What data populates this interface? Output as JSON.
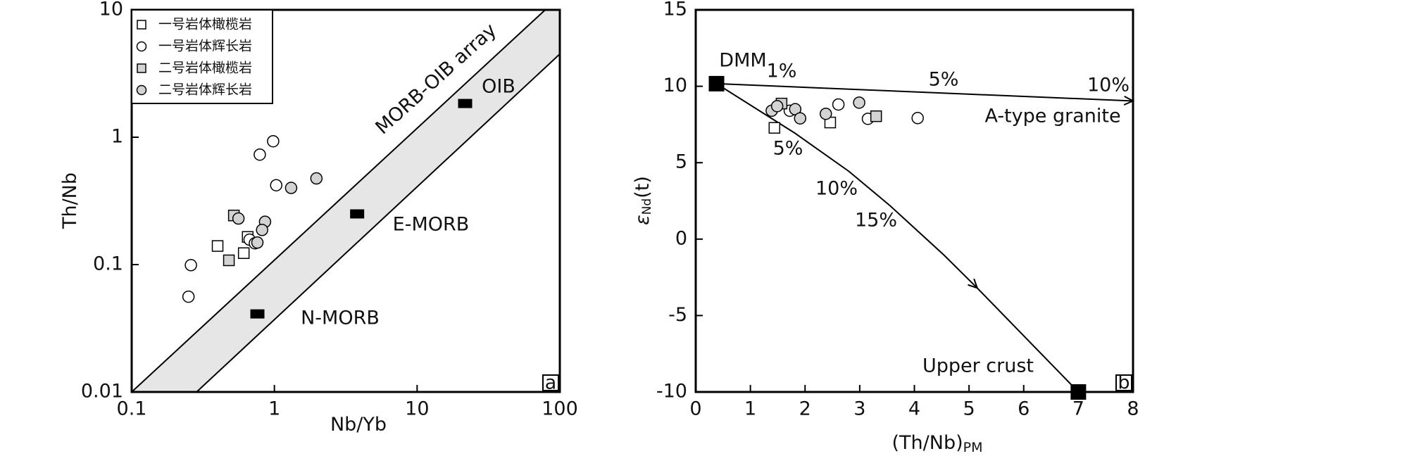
{
  "chart_data": [
    {
      "type": "scatter",
      "log": true,
      "x_label": "Nb/Yb",
      "y_label": "Th/Nb",
      "panel": "a",
      "xlim": [
        0.1,
        100
      ],
      "ylim": [
        0.01,
        10
      ],
      "xticks": [
        0.1,
        1,
        10,
        100
      ],
      "yticks": [
        0.01,
        0.1,
        1,
        10
      ],
      "legend": "upper left",
      "series": [
        {
          "name": "一号岩体橄榄岩",
          "marker": "square",
          "color": "#ffffff",
          "x": [
            0.4,
            0.65,
            0.61
          ],
          "y": [
            0.14,
            0.165,
            0.123
          ]
        },
        {
          "name": "一号岩体辉长岩",
          "marker": "circle",
          "color": "#ffffff",
          "x": [
            0.98,
            0.79,
            1.03,
            0.25,
            0.26,
            0.67,
            0.73
          ],
          "y": [
            0.93,
            0.73,
            0.42,
            0.056,
            0.099,
            0.157,
            0.147
          ]
        },
        {
          "name": "二号岩体橄榄岩",
          "marker": "square",
          "color": "#d3d3d3",
          "x": [
            0.52,
            0.48
          ],
          "y": [
            0.243,
            0.108
          ]
        },
        {
          "name": "二号岩体辉长岩",
          "marker": "circle",
          "color": "#d3d3d3",
          "x": [
            0.56,
            0.86,
            0.82,
            1.31,
            1.97,
            0.76
          ],
          "y": [
            0.23,
            0.217,
            0.187,
            0.4,
            0.475,
            0.149
          ]
        }
      ],
      "end_members": [
        {
          "label": "OIB",
          "x": 21.7,
          "y": 1.84
        },
        {
          "label": "E-MORB",
          "x": 3.8,
          "y": 0.25
        },
        {
          "label": "N-MORB",
          "x": 0.76,
          "y": 0.041
        }
      ],
      "array_lines": [
        {
          "x": [
            0.1,
            79
          ],
          "y": [
            0.01,
            10
          ]
        },
        {
          "x": [
            0.285,
            100
          ],
          "y": [
            0.01,
            4.5
          ]
        }
      ],
      "annotations": [
        "MORB-OIB array"
      ]
    },
    {
      "type": "scatter",
      "log": false,
      "x_label": "(Th/Nb)",
      "x_label_sub": "PM",
      "y_label": "ε",
      "y_label_sub": "Nd",
      "y_label_tail": "(t)",
      "panel": "b",
      "xlim": [
        0,
        8
      ],
      "ylim": [
        -10,
        15
      ],
      "xticks": [
        0,
        1,
        2,
        3,
        4,
        5,
        6,
        7,
        8
      ],
      "yticks": [
        -10,
        -5,
        0,
        5,
        10,
        15
      ],
      "series": [
        {
          "marker": "square",
          "color": "#ffffff",
          "x": [
            1.44,
            2.46
          ],
          "y": [
            7.28,
            7.63
          ]
        },
        {
          "marker": "circle",
          "color": "#ffffff",
          "x": [
            2.61,
            3.15,
            4.06,
            1.72
          ],
          "y": [
            8.81,
            7.87,
            7.92,
            8.4
          ]
        },
        {
          "marker": "square",
          "color": "#d3d3d3",
          "x": [
            1.57,
            3.3
          ],
          "y": [
            8.87,
            8.04
          ]
        },
        {
          "marker": "circle",
          "color": "#d3d3d3",
          "x": [
            1.39,
            1.49,
            1.82,
            1.91,
            2.38,
            2.99
          ],
          "y": [
            8.4,
            8.7,
            8.5,
            7.9,
            8.2,
            8.93
          ]
        }
      ],
      "end_members": [
        {
          "label": "DMM",
          "x": 0.38,
          "y": 10.17
        },
        {
          "label": "Upper crust",
          "x": 7.0,
          "y": -10.0
        }
      ],
      "mixing_lines": [
        {
          "x": [
            0.38,
            8.0
          ],
          "y": [
            10.17,
            9.04
          ]
        },
        {
          "x": [
            0.38,
            1.82,
            2.8,
            3.55,
            4.54,
            5.15,
            7.0
          ],
          "y": [
            10.17,
            6.92,
            4.44,
            2.2,
            -1.04,
            -3.2,
            -10.0
          ]
        }
      ],
      "annotations": [
        "1%",
        "5%",
        "10%",
        "A-type granite",
        "5%",
        "10%",
        "15%"
      ]
    }
  ]
}
